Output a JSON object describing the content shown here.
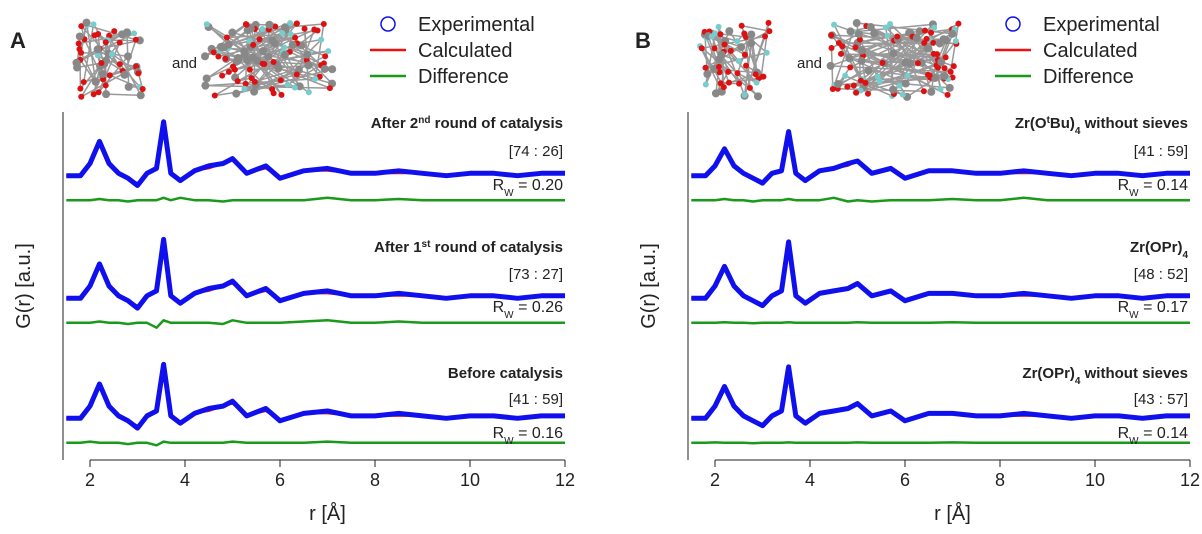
{
  "chart_data": [
    {
      "type": "line",
      "panel": "A",
      "molecule_caption": "and",
      "x_label": "r [Å]",
      "y_label": "G(r) [a.u.]",
      "xlim": [
        1.5,
        12
      ],
      "xticks": [
        2,
        4,
        6,
        8,
        10,
        12
      ],
      "ylim": [
        0,
        14.2
      ],
      "series": [
        {
          "name": "Experimental",
          "color": "#1010ee",
          "marker": "circle"
        },
        {
          "name": "Calculated",
          "color": "#ee1111"
        },
        {
          "name": "Difference",
          "color": "#1a9a1a"
        }
      ],
      "x": [
        1.5,
        1.8,
        2.0,
        2.2,
        2.4,
        2.6,
        2.8,
        3.0,
        3.2,
        3.4,
        3.55,
        3.7,
        3.9,
        4.2,
        4.5,
        4.8,
        5.0,
        5.3,
        5.7,
        6.0,
        6.5,
        7.0,
        7.5,
        8.0,
        8.5,
        9.0,
        9.5,
        10,
        10.5,
        11,
        11.5,
        12
      ],
      "traces": [
        {
          "label": [
            {
              "t": "After 2"
            },
            {
              "t": "nd",
              "sup": true
            },
            {
              "t": " round of catalysis"
            }
          ],
          "ratio": "[74 : 26]",
          "rw": [
            {
              "t": "R"
            },
            {
              "t": "W",
              "sub": true
            },
            {
              "t": " = 0.20"
            }
          ],
          "values": [
            [
              11.6,
              11.6,
              12.1,
              13.0,
              12.1,
              11.7,
              11.5,
              11.2,
              11.7,
              11.9,
              13.8,
              11.7,
              11.4,
              11.8,
              12.0,
              12.1,
              12.3,
              11.7,
              12.0,
              11.5,
              11.8,
              11.9,
              11.7,
              11.7,
              11.8,
              11.7,
              11.6,
              11.7,
              11.7,
              11.6,
              11.7,
              11.7
            ],
            [
              11.6,
              11.6,
              12.1,
              12.9,
              12.1,
              11.7,
              11.5,
              11.3,
              11.7,
              11.9,
              13.6,
              11.7,
              11.4,
              11.8,
              11.9,
              12.1,
              12.3,
              11.7,
              11.9,
              11.5,
              11.8,
              11.8,
              11.7,
              11.7,
              11.7,
              11.7,
              11.6,
              11.7,
              11.7,
              11.6,
              11.7,
              11.7
            ],
            [
              10.6,
              10.6,
              10.6,
              10.65,
              10.6,
              10.6,
              10.55,
              10.6,
              10.6,
              10.6,
              10.7,
              10.6,
              10.7,
              10.6,
              10.6,
              10.55,
              10.6,
              10.6,
              10.6,
              10.6,
              10.6,
              10.7,
              10.6,
              10.6,
              10.65,
              10.6,
              10.6,
              10.6,
              10.6,
              10.6,
              10.6,
              10.6
            ]
          ]
        },
        {
          "label": [
            {
              "t": "After 1"
            },
            {
              "t": "st",
              "sup": true
            },
            {
              "t": " round of catalysis"
            }
          ],
          "ratio": "[73 : 27]",
          "rw": [
            {
              "t": "R"
            },
            {
              "t": "W",
              "sub": true
            },
            {
              "t": " = 0.26"
            }
          ],
          "values": [
            [
              6.6,
              6.6,
              7.1,
              8.0,
              7.1,
              6.7,
              6.5,
              6.2,
              6.7,
              6.9,
              9.0,
              6.7,
              6.4,
              6.8,
              7.0,
              7.1,
              7.3,
              6.7,
              7.0,
              6.5,
              6.8,
              6.9,
              6.7,
              6.7,
              6.8,
              6.7,
              6.6,
              6.7,
              6.7,
              6.6,
              6.7,
              6.7
            ],
            [
              6.6,
              6.6,
              7.1,
              7.9,
              7.1,
              6.7,
              6.5,
              6.3,
              6.7,
              6.9,
              8.8,
              6.7,
              6.4,
              6.8,
              6.9,
              7.1,
              7.2,
              6.7,
              6.9,
              6.5,
              6.8,
              6.8,
              6.7,
              6.7,
              6.7,
              6.7,
              6.6,
              6.7,
              6.7,
              6.6,
              6.7,
              6.7
            ],
            [
              5.6,
              5.6,
              5.6,
              5.65,
              5.6,
              5.6,
              5.55,
              5.6,
              5.6,
              5.4,
              5.7,
              5.6,
              5.6,
              5.6,
              5.6,
              5.55,
              5.7,
              5.6,
              5.6,
              5.6,
              5.65,
              5.7,
              5.6,
              5.6,
              5.65,
              5.6,
              5.6,
              5.6,
              5.6,
              5.6,
              5.6,
              5.6
            ]
          ]
        },
        {
          "label": [
            {
              "t": "Before catalysis"
            }
          ],
          "ratio": "[41 : 59]",
          "rw": [
            {
              "t": "R"
            },
            {
              "t": "W",
              "sub": true
            },
            {
              "t": " = 0.16"
            }
          ],
          "values": [
            [
              1.7,
              1.7,
              2.2,
              3.1,
              2.2,
              1.8,
              1.6,
              1.3,
              1.8,
              2.0,
              3.9,
              1.8,
              1.5,
              1.9,
              2.1,
              2.2,
              2.4,
              1.8,
              2.1,
              1.6,
              1.9,
              2.0,
              1.8,
              1.8,
              1.9,
              1.8,
              1.7,
              1.8,
              1.8,
              1.7,
              1.8,
              1.8
            ],
            [
              1.7,
              1.7,
              2.2,
              3.0,
              2.2,
              1.8,
              1.6,
              1.4,
              1.8,
              2.0,
              3.8,
              1.8,
              1.5,
              1.9,
              2.0,
              2.2,
              2.3,
              1.8,
              2.0,
              1.6,
              1.9,
              1.9,
              1.8,
              1.8,
              1.8,
              1.8,
              1.7,
              1.8,
              1.8,
              1.7,
              1.8,
              1.8
            ],
            [
              0.7,
              0.7,
              0.75,
              0.7,
              0.7,
              0.7,
              0.65,
              0.7,
              0.7,
              0.6,
              0.75,
              0.7,
              0.7,
              0.7,
              0.7,
              0.7,
              0.75,
              0.7,
              0.7,
              0.7,
              0.7,
              0.75,
              0.7,
              0.7,
              0.7,
              0.7,
              0.7,
              0.7,
              0.7,
              0.7,
              0.7,
              0.7
            ]
          ]
        }
      ]
    },
    {
      "type": "line",
      "panel": "B",
      "molecule_caption": "and",
      "x_label": "r [Å]",
      "y_label": "G(r) [a.u.]",
      "xlim": [
        1.5,
        12
      ],
      "xticks": [
        2,
        4,
        6,
        8,
        10,
        12
      ],
      "ylim": [
        0,
        14.2
      ],
      "series": [
        {
          "name": "Experimental",
          "color": "#1010ee",
          "marker": "circle"
        },
        {
          "name": "Calculated",
          "color": "#ee1111"
        },
        {
          "name": "Difference",
          "color": "#1a9a1a"
        }
      ],
      "x": [
        1.5,
        1.8,
        2.0,
        2.2,
        2.4,
        2.6,
        2.8,
        3.0,
        3.2,
        3.4,
        3.55,
        3.7,
        3.9,
        4.2,
        4.5,
        4.8,
        5.0,
        5.3,
        5.7,
        6.0,
        6.5,
        7.0,
        7.5,
        8.0,
        8.5,
        9.0,
        9.5,
        10,
        10.5,
        11,
        11.5,
        12
      ],
      "traces": [
        {
          "label": [
            {
              "t": "Zr(O"
            },
            {
              "t": "t",
              "sup": true
            },
            {
              "t": "Bu)"
            },
            {
              "t": "4",
              "sub": true
            },
            {
              "t": " without sieves"
            }
          ],
          "ratio": "[41 : 59]",
          "rw": [
            {
              "t": "R"
            },
            {
              "t": "W",
              "sub": true
            },
            {
              "t": " = 0.14"
            }
          ],
          "values": [
            [
              11.6,
              11.6,
              12.0,
              12.7,
              12.0,
              11.7,
              11.5,
              11.3,
              11.7,
              11.8,
              13.4,
              11.7,
              11.4,
              11.8,
              11.9,
              12.1,
              12.2,
              11.7,
              11.9,
              11.5,
              11.8,
              11.8,
              11.7,
              11.7,
              11.8,
              11.7,
              11.6,
              11.7,
              11.7,
              11.6,
              11.7,
              11.7
            ],
            [
              11.6,
              11.6,
              12.0,
              12.7,
              12.0,
              11.7,
              11.5,
              11.3,
              11.7,
              11.8,
              13.3,
              11.7,
              11.4,
              11.8,
              11.9,
              12.0,
              12.2,
              11.7,
              11.9,
              11.5,
              11.8,
              11.8,
              11.7,
              11.7,
              11.7,
              11.7,
              11.6,
              11.7,
              11.7,
              11.6,
              11.7,
              11.7
            ],
            [
              10.6,
              10.6,
              10.6,
              10.65,
              10.6,
              10.6,
              10.55,
              10.6,
              10.6,
              10.6,
              10.65,
              10.6,
              10.6,
              10.6,
              10.7,
              10.55,
              10.6,
              10.55,
              10.6,
              10.6,
              10.6,
              10.65,
              10.6,
              10.6,
              10.7,
              10.6,
              10.6,
              10.6,
              10.6,
              10.6,
              10.6,
              10.6
            ]
          ]
        },
        {
          "label": [
            {
              "t": "Zr(OPr)"
            },
            {
              "t": "4",
              "sub": true
            }
          ],
          "ratio": "[48 : 52]",
          "rw": [
            {
              "t": "R"
            },
            {
              "t": "W",
              "sub": true
            },
            {
              "t": " = 0.17"
            }
          ],
          "values": [
            [
              6.6,
              6.6,
              7.1,
              7.9,
              7.1,
              6.7,
              6.5,
              6.3,
              6.7,
              6.9,
              8.9,
              6.7,
              6.4,
              6.8,
              6.9,
              7.0,
              7.2,
              6.7,
              6.9,
              6.5,
              6.8,
              6.8,
              6.7,
              6.7,
              6.8,
              6.7,
              6.6,
              6.7,
              6.7,
              6.6,
              6.7,
              6.7
            ],
            [
              6.6,
              6.6,
              7.1,
              7.9,
              7.1,
              6.7,
              6.5,
              6.3,
              6.7,
              6.9,
              8.8,
              6.7,
              6.4,
              6.8,
              6.9,
              7.0,
              7.2,
              6.7,
              6.9,
              6.5,
              6.8,
              6.8,
              6.7,
              6.7,
              6.7,
              6.7,
              6.6,
              6.7,
              6.7,
              6.6,
              6.7,
              6.7
            ],
            [
              5.6,
              5.6,
              5.6,
              5.62,
              5.6,
              5.6,
              5.58,
              5.6,
              5.6,
              5.6,
              5.62,
              5.6,
              5.6,
              5.6,
              5.6,
              5.6,
              5.62,
              5.6,
              5.6,
              5.6,
              5.6,
              5.62,
              5.6,
              5.6,
              5.6,
              5.6,
              5.6,
              5.6,
              5.6,
              5.6,
              5.6,
              5.6
            ]
          ]
        },
        {
          "label": [
            {
              "t": "Zr(OPr)"
            },
            {
              "t": "4",
              "sub": true
            },
            {
              "t": " without sieves"
            }
          ],
          "ratio": "[43 : 57]",
          "rw": [
            {
              "t": "R"
            },
            {
              "t": "W",
              "sub": true
            },
            {
              "t": " = 0.14"
            }
          ],
          "values": [
            [
              1.7,
              1.7,
              2.2,
              3.0,
              2.2,
              1.8,
              1.6,
              1.4,
              1.8,
              2.0,
              3.8,
              1.8,
              1.5,
              1.9,
              2.0,
              2.1,
              2.3,
              1.8,
              2.0,
              1.6,
              1.9,
              1.9,
              1.8,
              1.8,
              1.9,
              1.8,
              1.7,
              1.8,
              1.8,
              1.7,
              1.8,
              1.8
            ],
            [
              1.7,
              1.7,
              2.2,
              3.0,
              2.2,
              1.8,
              1.6,
              1.4,
              1.8,
              2.0,
              3.7,
              1.8,
              1.5,
              1.9,
              2.0,
              2.1,
              2.3,
              1.8,
              2.0,
              1.6,
              1.9,
              1.9,
              1.8,
              1.8,
              1.8,
              1.8,
              1.7,
              1.8,
              1.8,
              1.7,
              1.8,
              1.8
            ],
            [
              0.7,
              0.7,
              0.72,
              0.7,
              0.7,
              0.7,
              0.68,
              0.7,
              0.7,
              0.7,
              0.72,
              0.7,
              0.7,
              0.7,
              0.7,
              0.7,
              0.72,
              0.7,
              0.7,
              0.7,
              0.7,
              0.72,
              0.7,
              0.7,
              0.7,
              0.7,
              0.7,
              0.7,
              0.7,
              0.7,
              0.7,
              0.7
            ]
          ]
        }
      ]
    }
  ]
}
